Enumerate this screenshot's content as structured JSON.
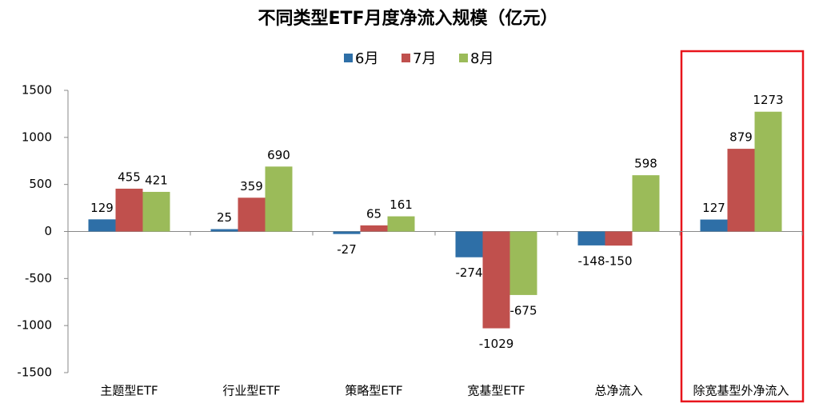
{
  "chart_data": {
    "type": "bar",
    "title": "不同类型ETF月度净流入规模（亿元）",
    "categories": [
      "主题型ETF",
      "行业型ETF",
      "策略型ETF",
      "宽基型ETF",
      "总净流入",
      "除宽基型外净流入"
    ],
    "series": [
      {
        "name": "6月",
        "color": "#2e6fa7",
        "values": [
          129,
          25,
          -27,
          -274,
          -148,
          127
        ]
      },
      {
        "name": "7月",
        "color": "#c0504d",
        "values": [
          455,
          359,
          65,
          -1029,
          -150,
          879
        ]
      },
      {
        "name": "8月",
        "color": "#9bbb59",
        "values": [
          421,
          690,
          161,
          -675,
          598,
          1273
        ]
      }
    ],
    "ylim": [
      -1500,
      1500
    ],
    "yticks": [
      -1500,
      -1000,
      -500,
      0,
      500,
      1000,
      1500
    ],
    "legend": "top"
  }
}
